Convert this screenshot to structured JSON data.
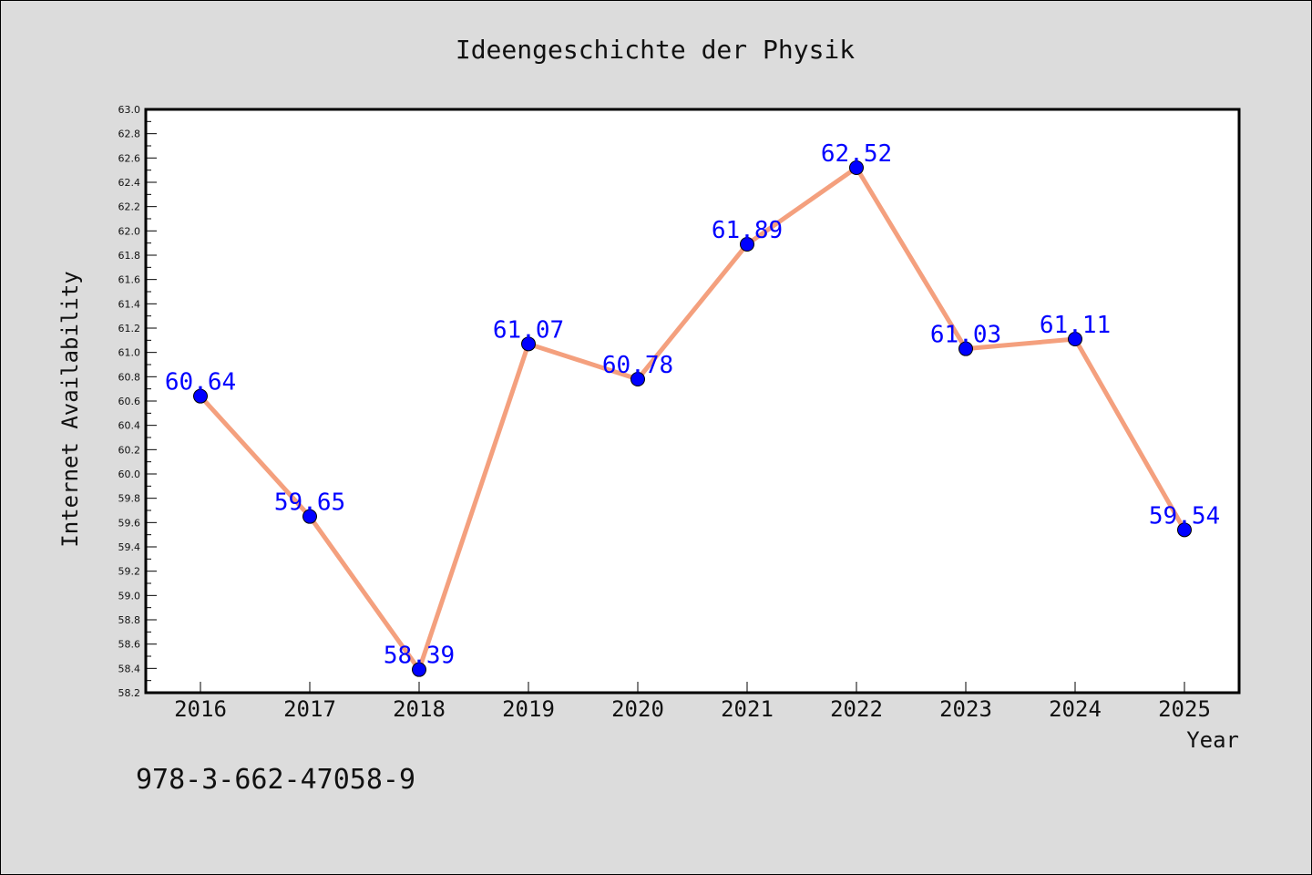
{
  "chart_data": {
    "type": "line",
    "title": "Ideengeschichte der Physik",
    "xlabel": "Year",
    "ylabel": "Internet Availability",
    "categories": [
      "2016",
      "2017",
      "2018",
      "2019",
      "2020",
      "2021",
      "2022",
      "2023",
      "2024",
      "2025"
    ],
    "series": [
      {
        "values": [
          60.64,
          59.65,
          58.39,
          61.07,
          60.78,
          61.89,
          62.52,
          61.03,
          61.11,
          59.54
        ],
        "data_labels": [
          "60.64",
          "59.65",
          "58.39",
          "61.07",
          "60.78",
          "61.89",
          "62.52",
          "61.03",
          "61.11",
          "59.54"
        ],
        "line_color": "#f4a07e",
        "marker_color": "#0000ff"
      }
    ],
    "ylim": [
      58.2,
      63.0
    ],
    "yticks": [
      "58.2",
      "58.4",
      "58.6",
      "58.8",
      "59.0",
      "59.2",
      "59.4",
      "59.6",
      "59.8",
      "60.0",
      "60.2",
      "60.4",
      "60.6",
      "60.8",
      "61.0",
      "61.2",
      "61.4",
      "61.6",
      "61.8",
      "62.0",
      "62.2",
      "62.4",
      "62.6",
      "62.8",
      "63.0"
    ],
    "grid": false,
    "legend": "none"
  },
  "annotation": {
    "isbn": "978-3-662-47058-9"
  },
  "colors": {
    "background": "#dcdcdc",
    "plot_background": "#ffffff",
    "line": "#f4a07e",
    "marker": "#0000ff",
    "data_label": "#0000ff"
  }
}
